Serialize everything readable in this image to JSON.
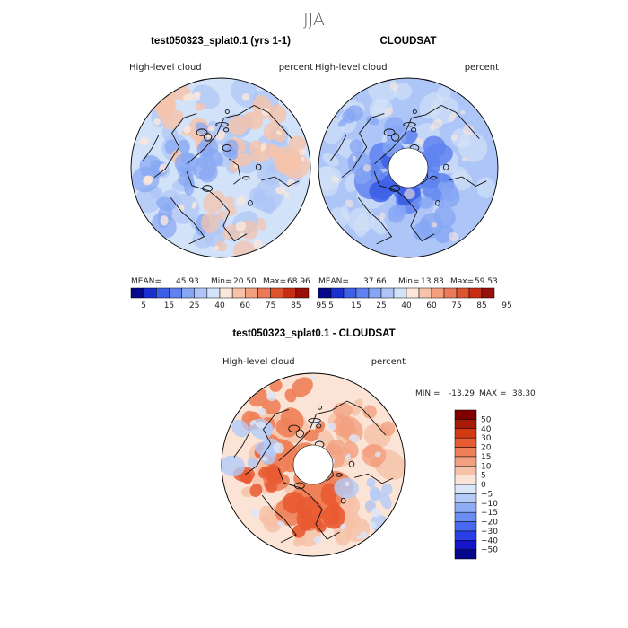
{
  "figure_title": "JJA",
  "chart_data": [
    {
      "type": "heatmap",
      "projection": "north-polar-stereographic",
      "title": "test050323_splat0.1 (yrs 1-1)",
      "variable": "High-level cloud",
      "units": "percent",
      "stats": {
        "mean_label": "MEAN=",
        "mean": "45.93",
        "min_label": "Min=",
        "min": "20.50",
        "max_label": "Max=",
        "max": "68.96"
      },
      "colorbar": {
        "levels": [
          5,
          15,
          25,
          40,
          60,
          75,
          85,
          95
        ],
        "level_labels": [
          "5",
          "15",
          "25",
          "40",
          "60",
          "75",
          "85",
          "95"
        ],
        "colors": [
          "#08088a",
          "#1a2fd0",
          "#3d60e8",
          "#5f82f0",
          "#86a6f4",
          "#aec6f7",
          "#d2e2f8",
          "#fbe7dc",
          "#f6c3aa",
          "#f2a080",
          "#ec7a5a",
          "#e0532f",
          "#c82e15",
          "#9a1008"
        ]
      },
      "field_summary": {
        "dominant_range": [
          40,
          60
        ],
        "polar_gap": false
      }
    },
    {
      "type": "heatmap",
      "projection": "north-polar-stereographic",
      "title": "CLOUDSAT",
      "variable": "High-level cloud",
      "units": "percent",
      "stats": {
        "mean_label": "MEAN=",
        "mean": "37.66",
        "min_label": "Min=",
        "min": "13.83",
        "max_label": "Max=",
        "max": "59.53"
      },
      "colorbar": {
        "levels": [
          5,
          15,
          25,
          40,
          60,
          75,
          85,
          95
        ],
        "level_labels": [
          "5",
          "15",
          "25",
          "40",
          "60",
          "75",
          "85",
          "95"
        ],
        "colors": [
          "#08088a",
          "#1a2fd0",
          "#3d60e8",
          "#5f82f0",
          "#86a6f4",
          "#aec6f7",
          "#d2e2f8",
          "#fbe7dc",
          "#f6c3aa",
          "#f2a080",
          "#ec7a5a",
          "#e0532f",
          "#c82e15",
          "#9a1008"
        ]
      },
      "field_summary": {
        "dominant_range": [
          25,
          40
        ],
        "polar_gap": true
      }
    },
    {
      "type": "heatmap",
      "projection": "north-polar-stereographic",
      "title": "test050323_splat0.1 - CLOUDSAT",
      "variable": "High-level cloud",
      "units": "percent",
      "stats": {
        "min_label": "MIN =",
        "min": "-13.29",
        "max_label": "MAX =",
        "max": "38.30"
      },
      "colorbar": {
        "orientation": "vertical",
        "levels": [
          -50,
          -40,
          -30,
          -20,
          -15,
          -10,
          -5,
          0,
          5,
          10,
          15,
          20,
          30,
          40,
          50
        ],
        "level_labels": [
          "−50",
          "−40",
          "−30",
          "−20",
          "−15",
          "−10",
          "−5",
          "0",
          "5",
          "10",
          "15",
          "20",
          "30",
          "40",
          "50"
        ],
        "colors": [
          "#06068a",
          "#1414c8",
          "#2a40e6",
          "#4868ef",
          "#6a8cf3",
          "#8eadf6",
          "#b4cbf8",
          "#dbe6f9",
          "#fbe3d6",
          "#f6c1a6",
          "#f2a07f",
          "#ee7f58",
          "#e85a32",
          "#d23a14",
          "#a71c06",
          "#800000"
        ]
      },
      "field_summary": {
        "dominant_range": [
          5,
          30
        ],
        "polar_gap": true
      }
    }
  ]
}
